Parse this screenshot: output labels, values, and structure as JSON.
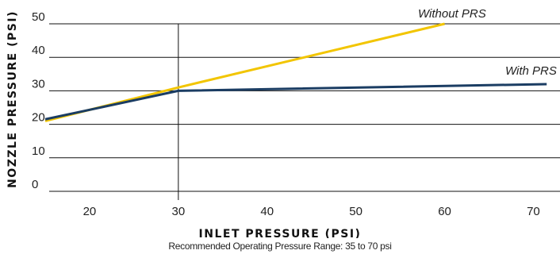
{
  "chart_data": {
    "type": "line",
    "xlabel": "INLET PRESSURE (PSI)",
    "ylabel": "NOZZLE PRESSURE (PSI)",
    "xlim": [
      15,
      73
    ],
    "ylim": [
      0,
      50
    ],
    "x_ticks": [
      20,
      30,
      40,
      50,
      60,
      70
    ],
    "y_ticks": [
      0,
      10,
      20,
      30,
      40,
      50
    ],
    "grid": "horizontal",
    "reference_line_x": 30,
    "series": [
      {
        "name": "Without PRS",
        "color": "#f2c500",
        "x": [
          15,
          30,
          60
        ],
        "y": [
          21,
          31,
          50
        ]
      },
      {
        "name": "With PRS",
        "color": "#1b3d63",
        "x": [
          15,
          30,
          71.5
        ],
        "y": [
          21.5,
          30,
          32
        ]
      }
    ],
    "note": "Recommended Operating Pressure Range: 35 to 70 psi"
  }
}
